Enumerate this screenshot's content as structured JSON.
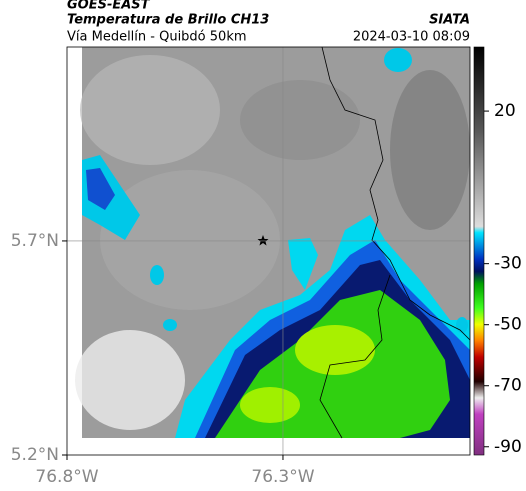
{
  "header": {
    "title": "GOES-EAST",
    "subtitle": "Temperatura de Brillo CH13",
    "region": "Vía Medellín - Quibdó 50km",
    "source": "SIATA",
    "timestamp": "2024-03-10 08:09"
  },
  "map": {
    "xlim": [
      -76.8,
      -75.867
    ],
    "ylim": [
      5.2,
      6.153
    ],
    "xticks": [
      {
        "value": -76.8,
        "label": "76.8°W"
      },
      {
        "value": -76.3,
        "label": "76.3°W"
      }
    ],
    "yticks": [
      {
        "value": 5.2,
        "label": "5.2°N"
      },
      {
        "value": 5.7,
        "label": "5.7°N"
      }
    ]
  },
  "colorbar": {
    "lim": [
      -92.7,
      41
    ],
    "ticks": [
      20,
      -30,
      -50,
      -70,
      -90
    ]
  }
}
